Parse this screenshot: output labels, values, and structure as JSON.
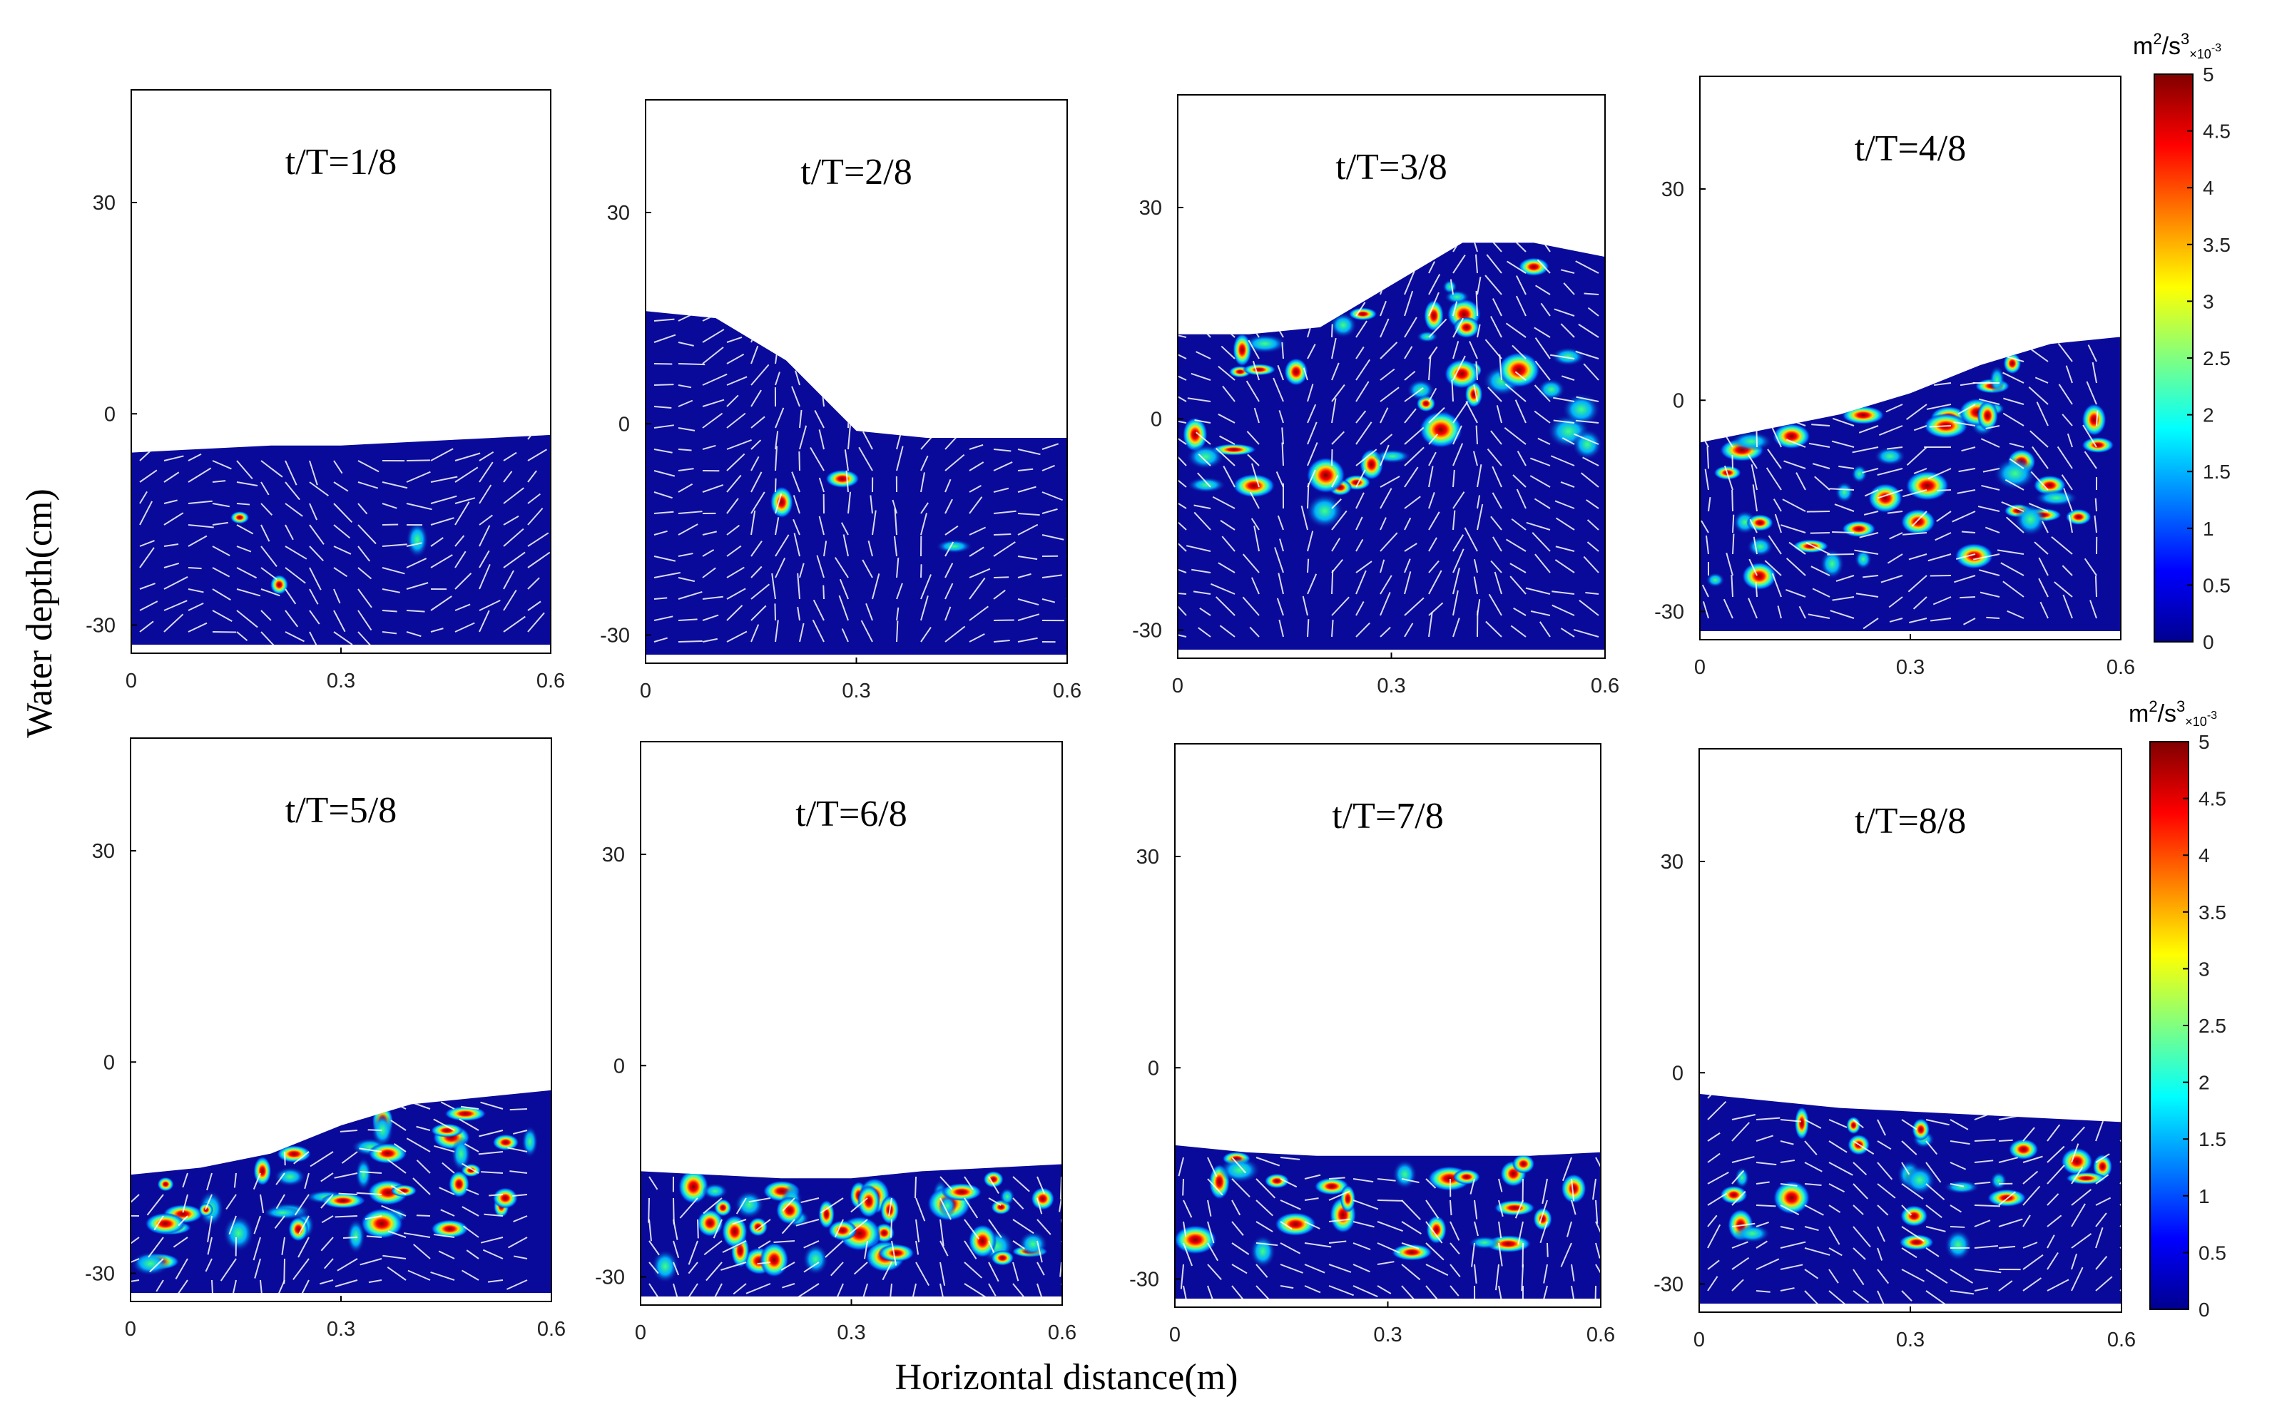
{
  "figure": {
    "ylabel": "Water depth(cm)",
    "xlabel": "Horizontal distance(m)",
    "colorbar": {
      "unit_base": "m",
      "unit_exp1": "2",
      "unit_mid": "/s",
      "unit_exp2": "3",
      "unit_scale": "×10",
      "unit_scale_exp": "-3",
      "ticks": [
        "0",
        "0.5",
        "1",
        "1.5",
        "2",
        "2.5",
        "3",
        "3.5",
        "4",
        "4.5",
        "5"
      ],
      "colors": [
        "#00008f",
        "#0000ff",
        "#0080ff",
        "#00ffff",
        "#80ff80",
        "#ffff00",
        "#ff8000",
        "#ff0000",
        "#800000"
      ]
    },
    "colors": {
      "water": "#0a0a9a",
      "arrow": "#ffffff"
    }
  },
  "chart_data": [
    {
      "type": "heatmap",
      "title": "t/T=1/8",
      "surface_x": [
        0,
        0.1,
        0.2,
        0.3,
        0.4,
        0.5,
        0.6
      ],
      "surface_y": [
        -5.5,
        -5,
        -4.5,
        -4.5,
        -4,
        -3.5,
        -3
      ],
      "xlim": [
        0,
        0.6
      ],
      "ylim": [
        -34,
        46
      ],
      "xticks": [
        "0",
        "0.3",
        "0.6"
      ],
      "yticks": [
        "-30",
        "0",
        "30"
      ],
      "intensity": "low"
    },
    {
      "type": "heatmap",
      "title": "t/T=2/8",
      "surface_x": [
        0,
        0.1,
        0.2,
        0.3,
        0.4,
        0.5,
        0.6
      ],
      "surface_y": [
        16,
        15,
        9,
        -1,
        -2,
        -2,
        -2
      ],
      "xlim": [
        0,
        0.6
      ],
      "ylim": [
        -34,
        46
      ],
      "xticks": [
        "0",
        "0.3",
        "0.6"
      ],
      "yticks": [
        "-30",
        "0",
        "30"
      ],
      "intensity": "low"
    },
    {
      "type": "heatmap",
      "title": "t/T=3/8",
      "surface_x": [
        0,
        0.1,
        0.2,
        0.3,
        0.4,
        0.5,
        0.6
      ],
      "surface_y": [
        12,
        12,
        13,
        19,
        25,
        25,
        23
      ],
      "xlim": [
        0,
        0.6
      ],
      "ylim": [
        -34,
        46
      ],
      "xticks": [
        "0",
        "0.3",
        "0.6"
      ],
      "yticks": [
        "-30",
        "0",
        "30"
      ],
      "intensity": "high"
    },
    {
      "type": "heatmap",
      "title": "t/T=4/8",
      "surface_x": [
        0,
        0.1,
        0.2,
        0.3,
        0.4,
        0.5,
        0.6
      ],
      "surface_y": [
        -6,
        -4,
        -2,
        1,
        5,
        8,
        9
      ],
      "xlim": [
        0,
        0.6
      ],
      "ylim": [
        -34,
        46
      ],
      "xticks": [
        "0",
        "0.3",
        "0.6"
      ],
      "yticks": [
        "-30",
        "0",
        "30"
      ],
      "intensity": "high"
    },
    {
      "type": "heatmap",
      "title": "t/T=5/8",
      "surface_x": [
        0,
        0.1,
        0.2,
        0.3,
        0.4,
        0.5,
        0.6
      ],
      "surface_y": [
        -16,
        -15,
        -13,
        -9,
        -6,
        -5,
        -4
      ],
      "xlim": [
        0,
        0.6
      ],
      "ylim": [
        -34,
        46
      ],
      "xticks": [
        "0",
        "0.3",
        "0.6"
      ],
      "yticks": [
        "-30",
        "0",
        "30"
      ],
      "intensity": "high"
    },
    {
      "type": "heatmap",
      "title": "t/T=6/8",
      "surface_x": [
        0,
        0.1,
        0.2,
        0.3,
        0.4,
        0.5,
        0.6
      ],
      "surface_y": [
        -15,
        -15.5,
        -16,
        -16,
        -15,
        -14.5,
        -14
      ],
      "xlim": [
        0,
        0.6
      ],
      "ylim": [
        -34,
        46
      ],
      "xticks": [
        "0",
        "0.3",
        "0.6"
      ],
      "yticks": [
        "-30",
        "0",
        "30"
      ],
      "intensity": "high"
    },
    {
      "type": "heatmap",
      "title": "t/T=7/8",
      "surface_x": [
        0,
        0.1,
        0.2,
        0.3,
        0.4,
        0.5,
        0.6
      ],
      "surface_y": [
        -11,
        -12,
        -12.5,
        -12.5,
        -12.5,
        -12.5,
        -12
      ],
      "xlim": [
        0,
        0.6
      ],
      "ylim": [
        -34,
        46
      ],
      "xticks": [
        "0",
        "0.3",
        "0.6"
      ],
      "yticks": [
        "-30",
        "0",
        "30"
      ],
      "intensity": "medium"
    },
    {
      "type": "heatmap",
      "title": "t/T=8/8",
      "surface_x": [
        0,
        0.1,
        0.2,
        0.3,
        0.4,
        0.5,
        0.6
      ],
      "surface_y": [
        -3,
        -4,
        -5,
        -5.5,
        -6,
        -6.5,
        -7
      ],
      "xlim": [
        0,
        0.6
      ],
      "ylim": [
        -34,
        46
      ],
      "xticks": [
        "0",
        "0.3",
        "0.6"
      ],
      "yticks": [
        "-30",
        "0",
        "30"
      ],
      "intensity": "medium"
    }
  ]
}
